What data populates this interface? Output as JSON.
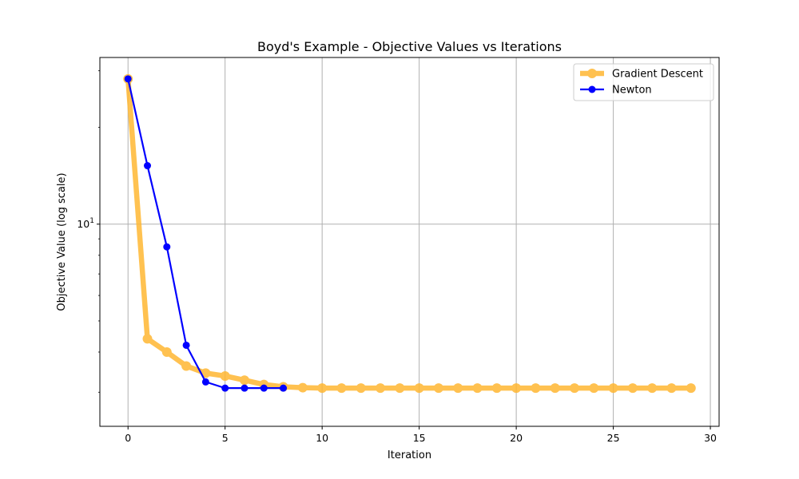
{
  "chart_data": {
    "type": "line",
    "title": "Boyd's Example - Objective Values vs Iterations",
    "xlabel": "Iteration",
    "ylabel": "Objective Value (log scale)",
    "yscale": "log",
    "xlim": [
      -1.45,
      30.45
    ],
    "ylim": [
      2.35,
      33
    ],
    "xticks": [
      0,
      5,
      10,
      15,
      20,
      25,
      30
    ],
    "yticks": [
      {
        "value": 10,
        "label": "10^1"
      }
    ],
    "grid": true,
    "legend": "top-right",
    "series": [
      {
        "name": "Gradient Descent",
        "color": "#ffb732",
        "x": [
          0,
          1,
          2,
          3,
          4,
          5,
          6,
          7,
          8,
          9,
          10,
          11,
          12,
          13,
          14,
          15,
          16,
          17,
          18,
          19,
          20,
          21,
          22,
          23,
          24,
          25,
          26,
          27,
          28,
          29
        ],
        "values": [
          28.3,
          4.4,
          4.0,
          3.62,
          3.44,
          3.37,
          3.27,
          3.17,
          3.12,
          3.1,
          3.09,
          3.09,
          3.09,
          3.09,
          3.09,
          3.09,
          3.09,
          3.09,
          3.09,
          3.09,
          3.09,
          3.09,
          3.09,
          3.09,
          3.09,
          3.09,
          3.09,
          3.09,
          3.09,
          3.09
        ]
      },
      {
        "name": "Newton",
        "color": "#0000ff",
        "x": [
          0,
          1,
          2,
          3,
          4,
          5,
          6,
          7,
          8
        ],
        "values": [
          28.3,
          15.2,
          8.5,
          4.2,
          3.23,
          3.09,
          3.09,
          3.09,
          3.09
        ]
      }
    ]
  }
}
